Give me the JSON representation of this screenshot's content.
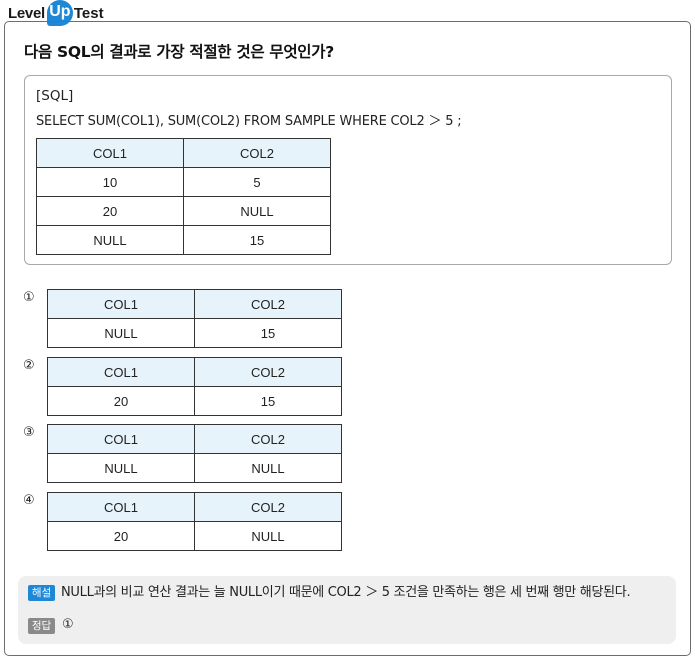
{
  "header": {
    "level": "Level",
    "up": "Up",
    "test": "Test"
  },
  "question": "다음 SQL의 결과로 가장 적절한 것은 무엇인가?",
  "sql": {
    "label": "[SQL]",
    "statement": "SELECT SUM(COL1), SUM(COL2) FROM SAMPLE WHERE COL2 ＞ 5 ;",
    "table": {
      "columns": [
        "COL1",
        "COL2"
      ],
      "rows": [
        [
          "10",
          "5"
        ],
        [
          "20",
          "NULL"
        ],
        [
          "NULL",
          "15"
        ]
      ]
    }
  },
  "options": [
    {
      "number": "①",
      "columns": [
        "COL1",
        "COL2"
      ],
      "row": [
        "NULL",
        "15"
      ]
    },
    {
      "number": "②",
      "columns": [
        "COL1",
        "COL2"
      ],
      "row": [
        "20",
        "15"
      ]
    },
    {
      "number": "③",
      "columns": [
        "COL1",
        "COL2"
      ],
      "row": [
        "NULL",
        "NULL"
      ]
    },
    {
      "number": "④",
      "columns": [
        "COL1",
        "COL2"
      ],
      "row": [
        "20",
        "NULL"
      ]
    }
  ],
  "explanation": {
    "badge": "해설",
    "text": "NULL과의 비교 연산 결과는 늘 NULL이기 때문에 COL2 ＞ 5 조건을 만족하는 행은 세 번째 행만 해당된다."
  },
  "answer": {
    "badge": "정답",
    "value": "①"
  },
  "colors": {
    "accent": "#1e88d6",
    "header_bg": "#e6f3fb",
    "explanation_bg": "#efefef"
  }
}
